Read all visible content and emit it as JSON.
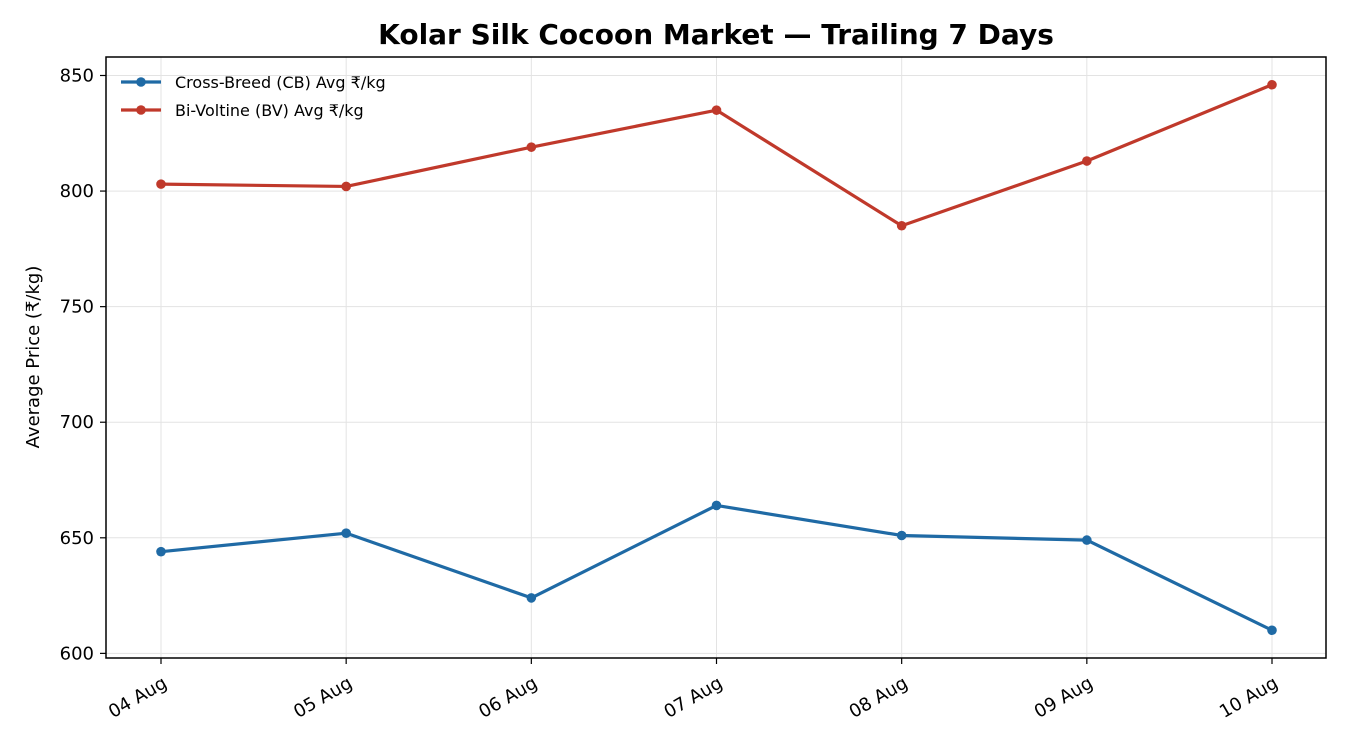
{
  "chart_data": {
    "type": "line",
    "title": "Kolar Silk Cocoon Market — Trailing 7 Days",
    "xlabel": "",
    "ylabel": "Average Price (₹/kg)",
    "categories": [
      "04 Aug",
      "05 Aug",
      "06 Aug",
      "07 Aug",
      "08 Aug",
      "09 Aug",
      "10 Aug"
    ],
    "ylim": [
      598,
      858
    ],
    "yticks": [
      600,
      650,
      700,
      750,
      800,
      850
    ],
    "grid": true,
    "legend_position": "top-left",
    "series": [
      {
        "name": "Cross-Breed (CB) Avg ₹/kg",
        "color": "#1f6aa5",
        "values": [
          644,
          652,
          624,
          664,
          651,
          649,
          610
        ]
      },
      {
        "name": "Bi-Voltine (BV) Avg ₹/kg",
        "color": "#c0392b",
        "values": [
          803,
          802,
          819,
          835,
          785,
          813,
          846
        ]
      }
    ]
  }
}
